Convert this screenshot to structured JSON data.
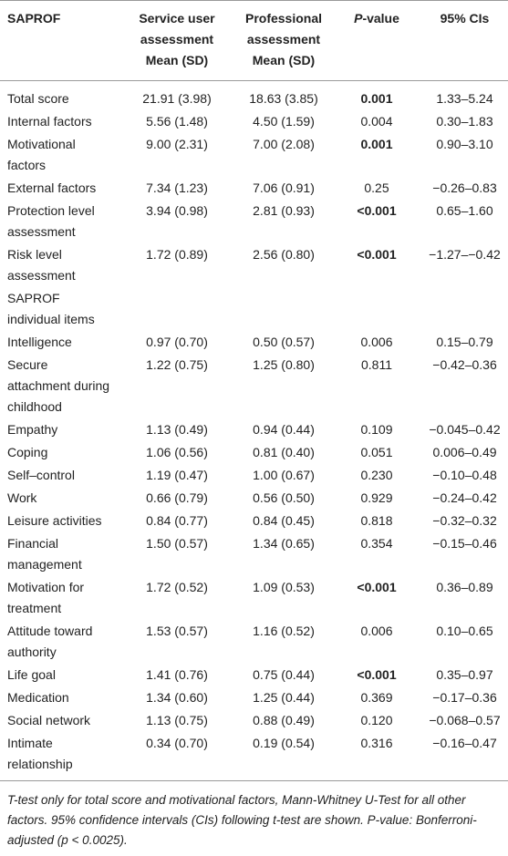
{
  "table": {
    "header": [
      "SAPROF",
      "Service user assessment Mean (SD)",
      "Professional assessment Mean (SD)",
      "P-value",
      "95% CIs"
    ],
    "rows": [
      {
        "label": "Total score",
        "user": "21.91 (3.98)",
        "professional": "18.63 (3.85)",
        "p": "0.001",
        "ci": "1.33–5.24",
        "p_bold": true
      },
      {
        "label": "Internal factors",
        "user": "5.56 (1.48)",
        "professional": "4.50 (1.59)",
        "p": "0.004",
        "ci": "0.30–1.83"
      },
      {
        "label": "Motivational factors",
        "user": "9.00 (2.31)",
        "professional": "7.00 (2.08)",
        "p": "0.001",
        "ci": "0.90–3.10",
        "p_bold": true
      },
      {
        "label": "External factors",
        "user": "7.34 (1.23)",
        "professional": "7.06 (0.91)",
        "p": "0.25",
        "ci": "−0.26–0.83"
      },
      {
        "label": "Protection level assessment",
        "user": "3.94 (0.98)",
        "professional": "2.81 (0.93)",
        "p": "<0.001",
        "ci": "0.65–1.60",
        "p_bold": true
      },
      {
        "label": "Risk level assessment",
        "user": "1.72 (0.89)",
        "professional": "2.56 (0.80)",
        "p": "<0.001",
        "ci": "−1.27–−0.42",
        "p_bold": true
      },
      {
        "label": "SAPROF individual items"
      },
      {
        "label": "Intelligence",
        "user": "0.97 (0.70)",
        "professional": "0.50 (0.57)",
        "p": "0.006",
        "ci": "0.15–0.79"
      },
      {
        "label": "Secure attachment during childhood",
        "user": "1.22 (0.75)",
        "professional": "1.25 (0.80)",
        "p": "0.811",
        "ci": "−0.42–0.36"
      },
      {
        "label": "Empathy",
        "user": "1.13 (0.49)",
        "professional": "0.94 (0.44)",
        "p": "0.109",
        "ci": "−0.045–0.42"
      },
      {
        "label": "Coping",
        "user": "1.06 (0.56)",
        "professional": "0.81 (0.40)",
        "p": "0.051",
        "ci": "0.006–0.49"
      },
      {
        "label": "Self–control",
        "user": "1.19 (0.47)",
        "professional": "1.00 (0.67)",
        "p": "0.230",
        "ci": "−0.10–0.48"
      },
      {
        "label": "Work",
        "user": "0.66 (0.79)",
        "professional": "0.56 (0.50)",
        "p": "0.929",
        "ci": "−0.24–0.42"
      },
      {
        "label": "Leisure activities",
        "user": "0.84 (0.77)",
        "professional": "0.84 (0.45)",
        "p": "0.818",
        "ci": "−0.32–0.32"
      },
      {
        "label": "Financial management",
        "user": "1.50 (0.57)",
        "professional": "1.34 (0.65)",
        "p": "0.354",
        "ci": "−0.15–0.46"
      },
      {
        "label": "Motivation for treatment",
        "user": "1.72 (0.52)",
        "professional": "1.09 (0.53)",
        "p": "<0.001",
        "ci": "0.36–0.89",
        "p_bold": true
      },
      {
        "label": "Attitude toward authority",
        "user": "1.53 (0.57)",
        "professional": "1.16 (0.52)",
        "p": "0.006",
        "ci": "0.10–0.65"
      },
      {
        "label": "Life goal",
        "user": "1.41 (0.76)",
        "professional": "0.75 (0.44)",
        "p": "<0.001",
        "ci": "0.35–0.97",
        "p_bold": true
      },
      {
        "label": "Medication",
        "user": "1.34 (0.60)",
        "professional": "1.25 (0.44)",
        "p": "0.369",
        "ci": "−0.17–0.36"
      },
      {
        "label": "Social network",
        "user": "1.13 (0.75)",
        "professional": "0.88 (0.49)",
        "p": "0.120",
        "ci": "−0.068–0.57"
      },
      {
        "label": "Intimate relationship",
        "user": "0.34 (0.70)",
        "professional": "0.19 (0.54)",
        "p": "0.316",
        "ci": "−0.16–0.47"
      }
    ],
    "footnote": "T-test only for total score and motivational factors, Mann-Whitney U-Test for all other factors. 95% confidence intervals (CIs) following t-test are shown. P-value: Bonferroni-adjusted (p < 0.0025)."
  }
}
